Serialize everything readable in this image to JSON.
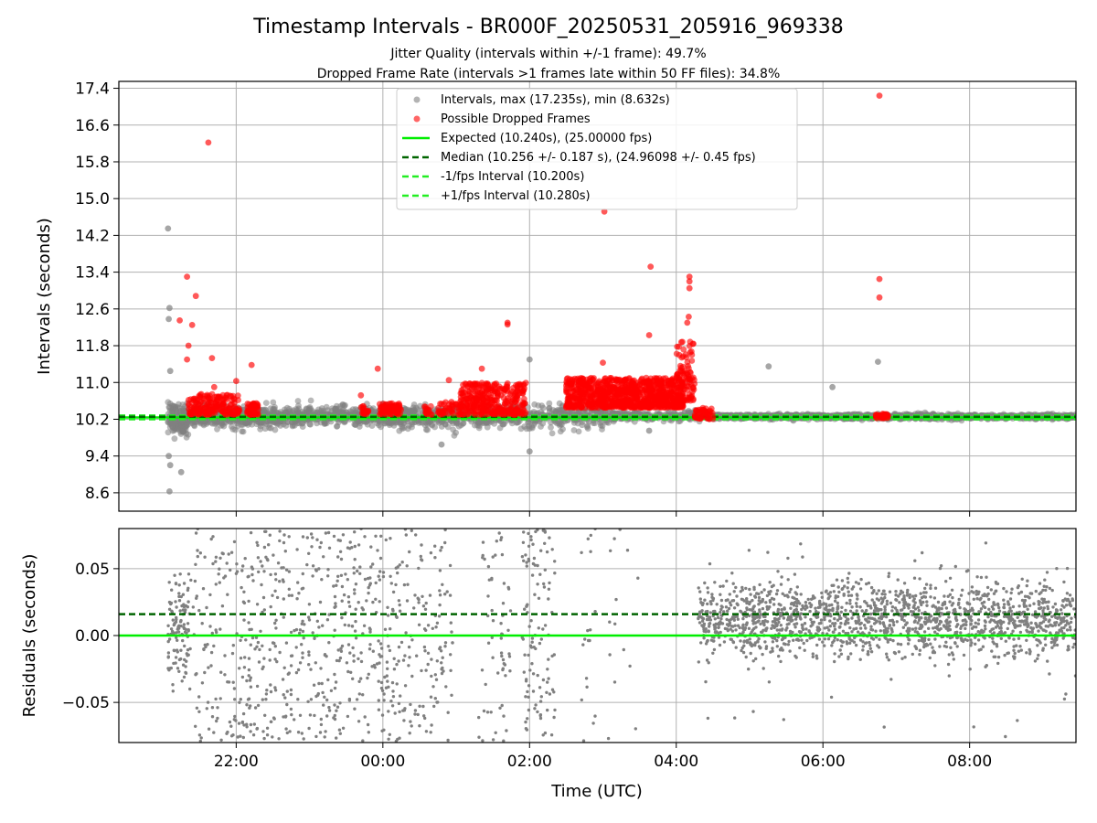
{
  "figure": {
    "title": "Timestamp Intervals - BR000F_20250531_205916_969338",
    "subtitle_1": "Jitter Quality (intervals within +/-1 frame): 49.7%",
    "subtitle_2": "Dropped Frame Rate (intervals >1 frames late within 50 FF files): 34.8%"
  },
  "colors": {
    "intervals": "#808080",
    "dropped": "#ff0000",
    "expected": "#00ee00",
    "median": "#006400",
    "fps_band": "#22ee22",
    "grid": "#b0b0b0"
  },
  "chart_data": [
    {
      "type": "scatter",
      "panel": "intervals",
      "ylabel": "Intervals (seconds)",
      "xlabel": "",
      "x_unit": "hours (UTC); values above 24 are the following day",
      "xlim": [
        20.4,
        33.45
      ],
      "ylim": [
        8.2,
        17.55
      ],
      "x_ticks": [
        {
          "value": 22,
          "label": "22:00"
        },
        {
          "value": 24,
          "label": "00:00"
        },
        {
          "value": 26,
          "label": "02:00"
        },
        {
          "value": 28,
          "label": "04:00"
        },
        {
          "value": 30,
          "label": "06:00"
        },
        {
          "value": 32,
          "label": "08:00"
        }
      ],
      "y_ticks": [
        {
          "value": 8.6,
          "label": "8.6"
        },
        {
          "value": 9.4,
          "label": "9.4"
        },
        {
          "value": 10.2,
          "label": "10.2"
        },
        {
          "value": 11.0,
          "label": "11.0"
        },
        {
          "value": 11.8,
          "label": "11.8"
        },
        {
          "value": 12.6,
          "label": "12.6"
        },
        {
          "value": 13.4,
          "label": "13.4"
        },
        {
          "value": 14.2,
          "label": "14.2"
        },
        {
          "value": 15.0,
          "label": "15.0"
        },
        {
          "value": 15.8,
          "label": "15.8"
        },
        {
          "value": 16.6,
          "label": "16.6"
        },
        {
          "value": 17.4,
          "label": "17.4"
        }
      ],
      "grid": true,
      "legend": {
        "placement": "top-center",
        "entries": [
          {
            "label": "Intervals, max (17.235s), min (8.632s)",
            "kind": "marker",
            "color_key": "intervals"
          },
          {
            "label": "Possible Dropped Frames",
            "kind": "marker",
            "color_key": "dropped"
          },
          {
            "label": "Expected (10.240s), (25.00000 fps)",
            "kind": "solid",
            "color_key": "expected"
          },
          {
            "label": "Median (10.256 +/- 0.187 s), (24.96098 +/- 0.45 fps)",
            "kind": "dashed",
            "color_key": "median"
          },
          {
            "label": "-1/fps Interval (10.200s)",
            "kind": "dashed",
            "color_key": "fps_band"
          },
          {
            "label": "+1/fps Interval (10.280s)",
            "kind": "dashed",
            "color_key": "fps_band"
          }
        ]
      },
      "reference_lines": [
        {
          "name": "Expected",
          "y": 10.24,
          "style": "solid",
          "color_key": "expected"
        },
        {
          "name": "Median",
          "y": 10.256,
          "style": "dashed",
          "color_key": "median"
        },
        {
          "name": "-1/fps Interval",
          "y": 10.2,
          "style": "dashed",
          "color_key": "fps_band"
        },
        {
          "name": "+1/fps Interval",
          "y": 10.28,
          "style": "dashed",
          "color_key": "fps_band"
        }
      ],
      "series": [
        {
          "name": "Intervals",
          "color_key": "intervals",
          "segments": [
            {
              "x_range": [
                21.07,
                21.33
              ],
              "n": 130,
              "center": 10.2,
              "spread": 0.35
            },
            {
              "x_range": [
                21.33,
                22.6
              ],
              "n": 420,
              "center": 10.25,
              "spread": 0.22
            },
            {
              "x_range": [
                22.6,
                24.9
              ],
              "n": 600,
              "center": 10.26,
              "spread": 0.22
            },
            {
              "x_range": [
                24.9,
                27.1
              ],
              "n": 420,
              "center": 10.26,
              "spread": 0.25
            },
            {
              "x_range": [
                27.1,
                28.4
              ],
              "n": 250,
              "center": 10.27,
              "spread": 0.1
            },
            {
              "x_range": [
                28.4,
                33.45
              ],
              "n": 1500,
              "center": 10.255,
              "spread": 0.05
            }
          ],
          "notable_points": [
            {
              "x": 21.07,
              "y": 14.35
            },
            {
              "x": 21.09,
              "y": 12.62
            },
            {
              "x": 21.08,
              "y": 12.38
            },
            {
              "x": 21.1,
              "y": 11.25
            },
            {
              "x": 21.08,
              "y": 9.4
            },
            {
              "x": 21.1,
              "y": 9.2
            },
            {
              "x": 21.09,
              "y": 8.63
            },
            {
              "x": 21.25,
              "y": 9.05
            },
            {
              "x": 27.63,
              "y": 9.95
            },
            {
              "x": 29.26,
              "y": 11.35
            },
            {
              "x": 30.13,
              "y": 10.9
            },
            {
              "x": 30.75,
              "y": 11.45
            },
            {
              "x": 26.0,
              "y": 11.5
            },
            {
              "x": 26.0,
              "y": 9.5
            },
            {
              "x": 24.8,
              "y": 9.65
            }
          ]
        },
        {
          "name": "Possible Dropped Frames",
          "color_key": "dropped",
          "clusters": [
            {
              "x_range": [
                21.35,
                22.05
              ],
              "n": 180,
              "y_range": [
                10.3,
                10.75
              ]
            },
            {
              "x_range": [
                22.15,
                22.3
              ],
              "n": 50,
              "y_range": [
                10.3,
                10.55
              ]
            },
            {
              "x_range": [
                23.7,
                23.8
              ],
              "n": 20,
              "y_range": [
                10.3,
                10.5
              ]
            },
            {
              "x_range": [
                23.95,
                24.25
              ],
              "n": 70,
              "y_range": [
                10.3,
                10.55
              ]
            },
            {
              "x_range": [
                24.55,
                24.7
              ],
              "n": 15,
              "y_range": [
                10.3,
                10.5
              ]
            },
            {
              "x_range": [
                24.75,
                25.05
              ],
              "n": 40,
              "y_range": [
                10.3,
                10.6
              ]
            },
            {
              "x_range": [
                25.05,
                25.95
              ],
              "n": 340,
              "y_range": [
                10.3,
                11.0
              ]
            },
            {
              "x_range": [
                26.5,
                28.1
              ],
              "n": 900,
              "y_range": [
                10.45,
                11.1
              ]
            },
            {
              "x_range": [
                28.0,
                28.25
              ],
              "n": 90,
              "y_range": [
                10.6,
                11.9
              ]
            },
            {
              "x_range": [
                28.25,
                28.5
              ],
              "n": 50,
              "y_range": [
                10.2,
                10.45
              ]
            },
            {
              "x_range": [
                30.72,
                30.9
              ],
              "n": 30,
              "y_range": [
                10.22,
                10.32
              ]
            }
          ],
          "notable_points": [
            {
              "x": 21.62,
              "y": 16.22
            },
            {
              "x": 21.33,
              "y": 13.3
            },
            {
              "x": 21.45,
              "y": 12.88
            },
            {
              "x": 21.23,
              "y": 12.35
            },
            {
              "x": 21.4,
              "y": 12.25
            },
            {
              "x": 21.35,
              "y": 11.8
            },
            {
              "x": 21.33,
              "y": 11.5
            },
            {
              "x": 21.67,
              "y": 11.53
            },
            {
              "x": 22.21,
              "y": 11.38
            },
            {
              "x": 22.0,
              "y": 11.03
            },
            {
              "x": 21.7,
              "y": 10.9
            },
            {
              "x": 23.7,
              "y": 10.72
            },
            {
              "x": 23.93,
              "y": 11.3
            },
            {
              "x": 24.9,
              "y": 11.05
            },
            {
              "x": 25.35,
              "y": 11.3
            },
            {
              "x": 25.7,
              "y": 12.3
            },
            {
              "x": 25.7,
              "y": 12.26
            },
            {
              "x": 27.02,
              "y": 14.72
            },
            {
              "x": 27.0,
              "y": 11.43
            },
            {
              "x": 27.65,
              "y": 13.52
            },
            {
              "x": 27.63,
              "y": 12.03
            },
            {
              "x": 28.18,
              "y": 13.3
            },
            {
              "x": 28.18,
              "y": 13.2
            },
            {
              "x": 28.18,
              "y": 13.05
            },
            {
              "x": 28.17,
              "y": 12.43
            },
            {
              "x": 28.15,
              "y": 12.3
            },
            {
              "x": 30.77,
              "y": 17.24
            },
            {
              "x": 30.77,
              "y": 13.25
            },
            {
              "x": 30.77,
              "y": 12.85
            }
          ]
        }
      ]
    },
    {
      "type": "scatter",
      "panel": "residuals",
      "ylabel": "Residuals (seconds)",
      "xlabel": "Time (UTC)",
      "x_unit": "hours (UTC); values above 24 are the following day",
      "xlim": [
        20.4,
        33.45
      ],
      "ylim": [
        -0.08,
        0.08
      ],
      "x_ticks": [
        {
          "value": 22,
          "label": "22:00"
        },
        {
          "value": 24,
          "label": "00:00"
        },
        {
          "value": 26,
          "label": "02:00"
        },
        {
          "value": 28,
          "label": "04:00"
        },
        {
          "value": 30,
          "label": "06:00"
        },
        {
          "value": 32,
          "label": "08:00"
        }
      ],
      "y_ticks": [
        {
          "value": -0.05,
          "label": "−0.05"
        },
        {
          "value": 0.0,
          "label": "0.00"
        },
        {
          "value": 0.05,
          "label": "0.05"
        }
      ],
      "grid": true,
      "reference_lines": [
        {
          "name": "Expected",
          "y": 0.0,
          "style": "solid",
          "color_key": "expected"
        },
        {
          "name": "Median",
          "y": 0.016,
          "style": "dashed",
          "color_key": "median"
        }
      ],
      "series": [
        {
          "name": "Residuals",
          "color_key": "intervals",
          "segments": [
            {
              "x_range": [
                21.07,
                21.35
              ],
              "n": 110,
              "center": 0.0,
              "spread": 0.04
            },
            {
              "x_range": [
                21.35,
                22.1
              ],
              "n": 120,
              "center": 0.0,
              "spread": 0.08
            },
            {
              "x_range": [
                22.1,
                22.55
              ],
              "n": 110,
              "center": 0.0,
              "spread": 0.08
            },
            {
              "x_range": [
                22.55,
                24.95
              ],
              "n": 480,
              "center": 0.0,
              "spread": 0.08
            },
            {
              "x_range": [
                26.7,
                26.9
              ],
              "n": 18,
              "center": 0.0,
              "spread": 0.08
            },
            {
              "x_range": [
                25.3,
                25.75
              ],
              "n": 60,
              "center": 0.0,
              "spread": 0.08
            },
            {
              "x_range": [
                25.9,
                26.35
              ],
              "n": 110,
              "center": 0.0,
              "spread": 0.08
            },
            {
              "x_range": [
                27.05,
                27.5
              ],
              "n": 14,
              "center": 0.0,
              "spread": 0.08
            },
            {
              "x_range": [
                28.3,
                33.45
              ],
              "n": 1700,
              "center": 0.012,
              "spread": 0.028
            }
          ]
        }
      ]
    }
  ]
}
